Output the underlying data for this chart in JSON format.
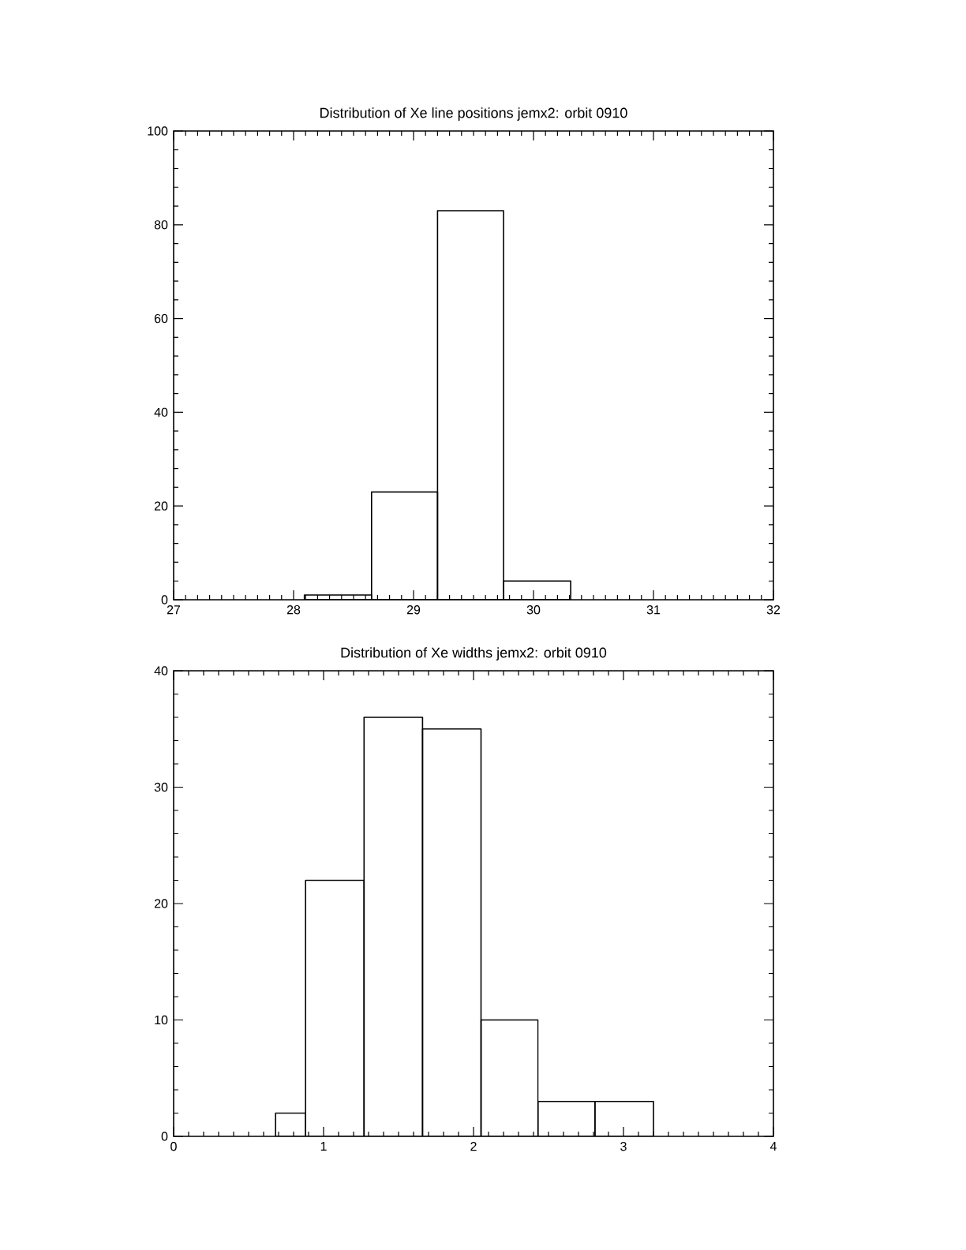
{
  "chart_data": [
    {
      "type": "histogram",
      "title": "Distribution of Xe line positions jemx2: orbit 0910",
      "bins": [
        28.09,
        28.65,
        29.2,
        29.75,
        30.31
      ],
      "values": [
        1,
        23,
        83,
        4
      ],
      "color": "#000000",
      "xlim": [
        27,
        32
      ],
      "xticks": [
        27,
        28,
        29,
        30,
        31,
        32
      ],
      "ylim": [
        0,
        100
      ],
      "yticks": [
        0,
        20,
        40,
        60,
        80,
        100
      ]
    },
    {
      "type": "histogram",
      "title": "Distribution of Xe widths jemx2: orbit 0910",
      "bins": [
        0.68,
        0.88,
        1.27,
        1.66,
        2.05,
        2.43,
        2.81,
        3.2
      ],
      "values": [
        2,
        22,
        36,
        35,
        10,
        3,
        3
      ],
      "color": "#000000",
      "xlim": [
        0,
        4
      ],
      "xticks": [
        0,
        1,
        2,
        3,
        4
      ],
      "ylim": [
        0,
        40
      ],
      "yticks": [
        0,
        10,
        20,
        30,
        40
      ]
    }
  ]
}
